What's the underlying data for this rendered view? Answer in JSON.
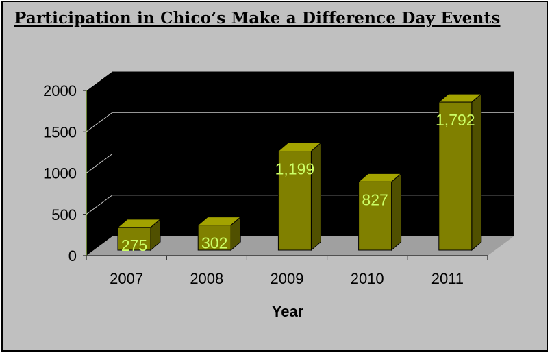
{
  "chart_data": {
    "type": "bar",
    "title": "Participation in Chico’s Make a Difference Day Events",
    "xlabel": "Year",
    "ylabel": "",
    "categories": [
      "2007",
      "2008",
      "2009",
      "2010",
      "2011"
    ],
    "values": [
      275,
      302,
      1199,
      827,
      1792
    ],
    "data_labels": [
      "275",
      "302",
      "1,199",
      "827",
      "1,792"
    ],
    "ylim": [
      0,
      2000
    ],
    "yticks": [
      0,
      500,
      1000,
      1500,
      2000
    ],
    "ytick_labels": [
      "0",
      "500",
      "1000",
      "1500",
      "2000"
    ],
    "grid": true,
    "legend": "none",
    "style_3d": true,
    "colors": {
      "bar_front": "#808000",
      "bar_top": "#a3a300",
      "bar_side": "#505000",
      "back_wall": "#000000",
      "floor": "#a0a0a0",
      "data_label": "#ccff66",
      "axis_line": "#ccff66",
      "background": "#c0c0c0"
    }
  }
}
